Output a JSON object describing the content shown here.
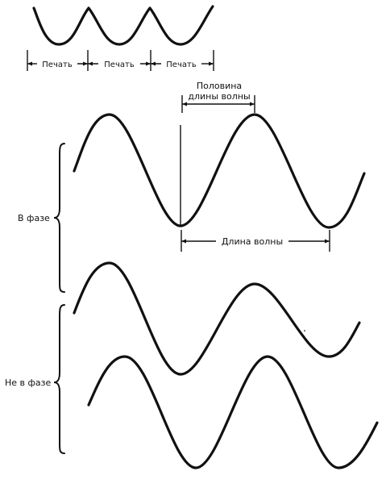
{
  "print_labels": [
    "Печать",
    "Печать",
    "Печать"
  ],
  "half_wavelength": {
    "line1": "Половина",
    "line2": "длины волны"
  },
  "wavelength_label": "Длина волны",
  "in_phase_label": "В фазе",
  "out_of_phase_label": "Не в фазе"
}
